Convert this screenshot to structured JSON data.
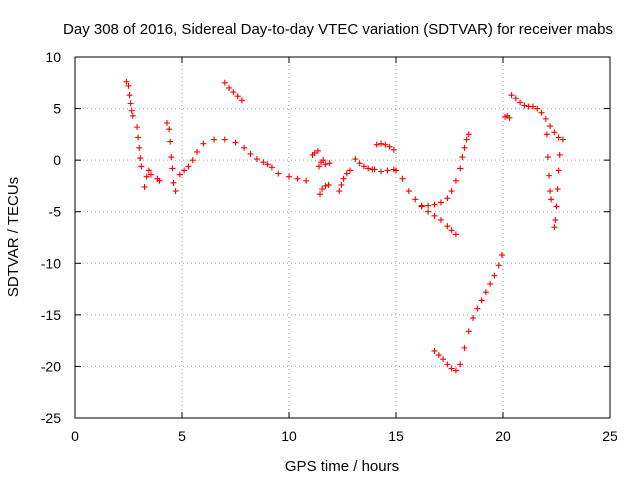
{
  "chart_data": {
    "type": "scatter",
    "title": "Day 308 of 2016, Sidereal Day-to-day VTEC variation (SDTVAR) for receiver mabs",
    "xlabel": "GPS time / hours",
    "ylabel": "SDTVAR / TECUs",
    "xlim": [
      0,
      25
    ],
    "ylim": [
      -25,
      10
    ],
    "xticks": [
      0,
      5,
      10,
      15,
      20,
      25
    ],
    "yticks": [
      -25,
      -20,
      -15,
      -10,
      -5,
      0,
      5,
      10
    ],
    "grid": true,
    "marker": "+",
    "color": "#ff0000",
    "series": [
      {
        "name": "s1",
        "x": [
          2.4,
          2.5,
          2.55,
          2.6,
          2.65,
          2.7
        ],
        "y": [
          7.6,
          7.2,
          6.3,
          5.5,
          4.8,
          4.3
        ]
      },
      {
        "name": "s2",
        "x": [
          2.9,
          2.95,
          3.0,
          3.05,
          3.1
        ],
        "y": [
          3.2,
          2.2,
          1.2,
          0.2,
          -0.6
        ]
      },
      {
        "name": "s3",
        "x": [
          3.25,
          3.35,
          3.45,
          3.55
        ],
        "y": [
          -2.6,
          -1.6,
          -1.0,
          -1.4
        ]
      },
      {
        "name": "s4",
        "x": [
          3.85,
          3.95
        ],
        "y": [
          -1.8,
          -2.0
        ]
      },
      {
        "name": "s5",
        "x": [
          4.3,
          4.4,
          4.45,
          4.5,
          4.55,
          4.6,
          4.7
        ],
        "y": [
          3.6,
          3.0,
          1.8,
          0.3,
          -0.8,
          -2.2,
          -3.0
        ]
      },
      {
        "name": "s6",
        "x": [
          4.9,
          5.1,
          5.3,
          5.5,
          5.7,
          6.0,
          6.5,
          7.0,
          7.5,
          7.9,
          8.2,
          8.5,
          8.8,
          9.0,
          9.2,
          9.5,
          10.0,
          10.4,
          10.8
        ],
        "y": [
          -1.4,
          -1.0,
          -0.6,
          0.0,
          0.8,
          1.6,
          2.0,
          2.0,
          1.7,
          1.2,
          0.6,
          0.1,
          -0.2,
          -0.4,
          -0.7,
          -1.3,
          -1.6,
          -1.8,
          -2.0
        ]
      },
      {
        "name": "s7",
        "x": [
          7.0,
          7.2,
          7.4,
          7.6,
          7.8
        ],
        "y": [
          7.5,
          7.0,
          6.6,
          6.2,
          5.8
        ]
      },
      {
        "name": "s8",
        "x": [
          11.1,
          11.2,
          11.35
        ],
        "y": [
          0.5,
          0.7,
          0.9
        ]
      },
      {
        "name": "s9",
        "x": [
          11.4,
          11.5,
          11.6,
          11.7,
          11.9
        ],
        "y": [
          -0.6,
          -0.2,
          0.0,
          -0.4,
          -0.3
        ]
      },
      {
        "name": "s10",
        "x": [
          11.45,
          11.55,
          11.7,
          11.85
        ],
        "y": [
          -3.3,
          -2.8,
          -2.5,
          -2.4
        ]
      },
      {
        "name": "s11",
        "x": [
          12.35,
          12.45,
          12.55,
          12.7,
          12.85
        ],
        "y": [
          -3.0,
          -2.4,
          -1.8,
          -1.3,
          -1.0
        ]
      },
      {
        "name": "s12",
        "x": [
          13.1,
          13.3,
          13.5,
          13.7,
          13.9
        ],
        "y": [
          0.1,
          -0.3,
          -0.6,
          -0.8,
          -0.9
        ]
      },
      {
        "name": "s13",
        "x": [
          14.1,
          14.3,
          14.5,
          14.7,
          14.9
        ],
        "y": [
          1.5,
          1.6,
          1.5,
          1.3,
          1.0
        ]
      },
      {
        "name": "s14",
        "x": [
          14.0,
          14.3,
          14.6,
          14.9
        ],
        "y": [
          -0.9,
          -1.1,
          -1.0,
          -0.9
        ]
      },
      {
        "name": "s15",
        "x": [
          15.0,
          15.3,
          15.6,
          15.9,
          16.2,
          16.5,
          16.8,
          17.1,
          17.4,
          17.6,
          17.8
        ],
        "y": [
          -1.0,
          -1.8,
          -3.0,
          -3.8,
          -4.4,
          -5.0,
          -5.4,
          -5.8,
          -6.4,
          -6.8,
          -7.2
        ]
      },
      {
        "name": "s16",
        "x": [
          16.2,
          16.5,
          16.8,
          17.1,
          17.4,
          17.6,
          17.8,
          18.0,
          18.1,
          18.2,
          18.3,
          18.4
        ],
        "y": [
          -4.5,
          -4.4,
          -4.3,
          -4.1,
          -3.7,
          -3.0,
          -2.0,
          -0.8,
          0.3,
          1.2,
          2.0,
          2.5
        ]
      },
      {
        "name": "s17",
        "x": [
          16.8,
          17.0,
          17.2,
          17.4,
          17.6,
          17.8,
          18.0,
          18.2,
          18.4,
          18.6,
          18.8,
          19.0,
          19.2,
          19.4,
          19.6,
          19.8,
          19.95
        ],
        "y": [
          -18.5,
          -18.9,
          -19.3,
          -19.8,
          -20.2,
          -20.4,
          -19.8,
          -18.2,
          -16.6,
          -15.3,
          -14.4,
          -13.6,
          -12.8,
          -12.0,
          -11.2,
          -10.2,
          -9.2
        ]
      },
      {
        "name": "s18",
        "x": [
          20.1,
          20.2,
          20.3
        ],
        "y": [
          4.2,
          4.3,
          4.1
        ]
      },
      {
        "name": "s19",
        "x": [
          20.4,
          20.6,
          20.8,
          21.0,
          21.2,
          21.4,
          21.6,
          21.8,
          22.0,
          22.2,
          22.4,
          22.6,
          22.8
        ],
        "y": [
          6.3,
          6.0,
          5.6,
          5.3,
          5.2,
          5.2,
          5.0,
          4.6,
          4.0,
          3.3,
          2.7,
          2.2,
          2.0
        ]
      },
      {
        "name": "s20",
        "x": [
          22.05,
          22.1,
          22.15,
          22.2,
          22.25
        ],
        "y": [
          2.5,
          0.3,
          -1.5,
          -3.0,
          -3.8
        ]
      },
      {
        "name": "s21",
        "x": [
          22.4,
          22.45,
          22.5,
          22.55,
          22.6,
          22.65
        ],
        "y": [
          -6.5,
          -5.8,
          -4.5,
          -2.8,
          -1.0,
          0.5
        ]
      }
    ]
  }
}
